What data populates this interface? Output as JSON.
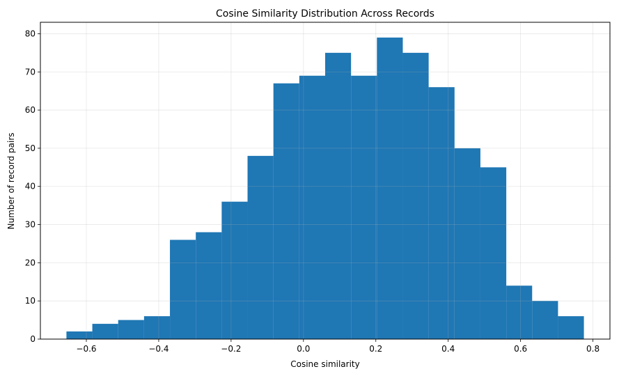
{
  "chart_data": {
    "type": "bar",
    "title": "Cosine Similarity Distribution Across Records",
    "xlabel": "Cosine similarity",
    "ylabel": "Number of record pairs",
    "bin_edges": [
      -0.655,
      -0.5835,
      -0.512,
      -0.4405,
      -0.369,
      -0.2975,
      -0.226,
      -0.1545,
      -0.083,
      -0.0115,
      0.06,
      0.1315,
      0.203,
      0.2745,
      0.346,
      0.4175,
      0.489,
      0.5605,
      0.632,
      0.7035,
      0.775
    ],
    "values": [
      2,
      4,
      5,
      6,
      26,
      28,
      36,
      48,
      67,
      69,
      75,
      69,
      79,
      75,
      66,
      50,
      45,
      14,
      10,
      6
    ],
    "xlim": [
      -0.727,
      0.847
    ],
    "ylim": [
      0,
      83
    ],
    "xticks": [
      -0.6,
      -0.4,
      -0.2,
      0.0,
      0.2,
      0.4,
      0.6,
      0.8
    ],
    "xtick_labels": [
      "−0.6",
      "−0.4",
      "−0.2",
      "0.0",
      "0.2",
      "0.4",
      "0.6",
      "0.8"
    ],
    "yticks": [
      0,
      10,
      20,
      30,
      40,
      50,
      60,
      70,
      80
    ],
    "ytick_labels": [
      "0",
      "10",
      "20",
      "30",
      "40",
      "50",
      "60",
      "70",
      "80"
    ],
    "grid": true,
    "bar_color": "#1f77b4"
  }
}
